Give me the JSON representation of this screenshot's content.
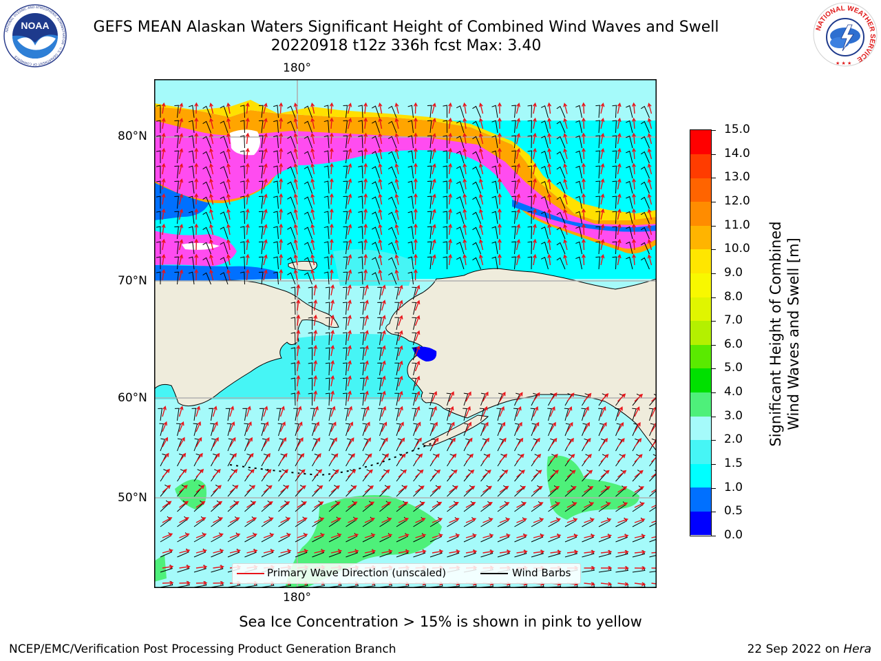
{
  "header": {
    "title_line1": "GEFS MEAN Alaskan Waters Significant Height of Combined Wind Waves and Swell",
    "title_line2": "20220918 t12z 336h fcst   Max: 3.40"
  },
  "logos": {
    "left": {
      "name": "NOAA",
      "text": "NOAA",
      "ring_text": "NATIONAL OCEANIC AND ATMOSPHERIC ADMINISTRATION · U.S. DEPARTMENT OF COMMERCE"
    },
    "right": {
      "name": "National Weather Service",
      "ring_text": "NATIONAL WEATHER SERVICE"
    }
  },
  "map": {
    "lon_labels": {
      "top": "180°",
      "bottom": "180°"
    },
    "lat_labels": [
      "80°N",
      "70°N",
      "60°N",
      "50°N"
    ],
    "colors": {
      "land": "#efecdc",
      "frame": "#000000",
      "grid": "#b0b0b0",
      "wave_arrow": "#e8141a",
      "wind_barb": "#000000"
    },
    "legend": {
      "wave_label": "Primary Wave Direction (unscaled)",
      "barb_label": "Wind Barbs"
    }
  },
  "colorbar": {
    "title_line1": "Significant Height of Combined",
    "title_line2": "Wind Waves and Swell [m]",
    "tick_labels": [
      "15.0",
      "14.0",
      "13.0",
      "12.0",
      "11.0",
      "10.0",
      "9.0",
      "8.0",
      "7.0",
      "6.0",
      "5.0",
      "4.0",
      "3.0",
      "2.0",
      "1.5",
      "1.0",
      "0.5",
      "0.0"
    ],
    "bins": [
      {
        "from": 0.0,
        "to": 0.5,
        "color": "#0000ff"
      },
      {
        "from": 0.5,
        "to": 1.0,
        "color": "#0070ff"
      },
      {
        "from": 1.0,
        "to": 1.5,
        "color": "#00ffff"
      },
      {
        "from": 1.5,
        "to": 2.0,
        "color": "#46f5f5"
      },
      {
        "from": 2.0,
        "to": 3.0,
        "color": "#a5fafa"
      },
      {
        "from": 3.0,
        "to": 4.0,
        "color": "#4ef07a"
      },
      {
        "from": 4.0,
        "to": 5.0,
        "color": "#00e000"
      },
      {
        "from": 5.0,
        "to": 6.0,
        "color": "#5aea00"
      },
      {
        "from": 6.0,
        "to": 7.0,
        "color": "#b4f000"
      },
      {
        "from": 7.0,
        "to": 8.0,
        "color": "#e0f500"
      },
      {
        "from": 8.0,
        "to": 9.0,
        "color": "#f8f800"
      },
      {
        "from": 9.0,
        "to": 10.0,
        "color": "#ffe600"
      },
      {
        "from": 10.0,
        "to": 11.0,
        "color": "#ffb400"
      },
      {
        "from": 11.0,
        "to": 12.0,
        "color": "#ff8c00"
      },
      {
        "from": 12.0,
        "to": 13.0,
        "color": "#ff6400"
      },
      {
        "from": 13.0,
        "to": 14.0,
        "color": "#ff3c00"
      },
      {
        "from": 14.0,
        "to": 15.0,
        "color": "#ff0000"
      }
    ]
  },
  "notes": {
    "sea_ice": "Sea Ice Concentration > 15% is shown in pink to yellow"
  },
  "footer": {
    "left": "NCEP/EMC/Verification Post Processing Product Generation Branch",
    "right_date": "22 Sep 2022 on ",
    "right_machine": "Hera"
  }
}
